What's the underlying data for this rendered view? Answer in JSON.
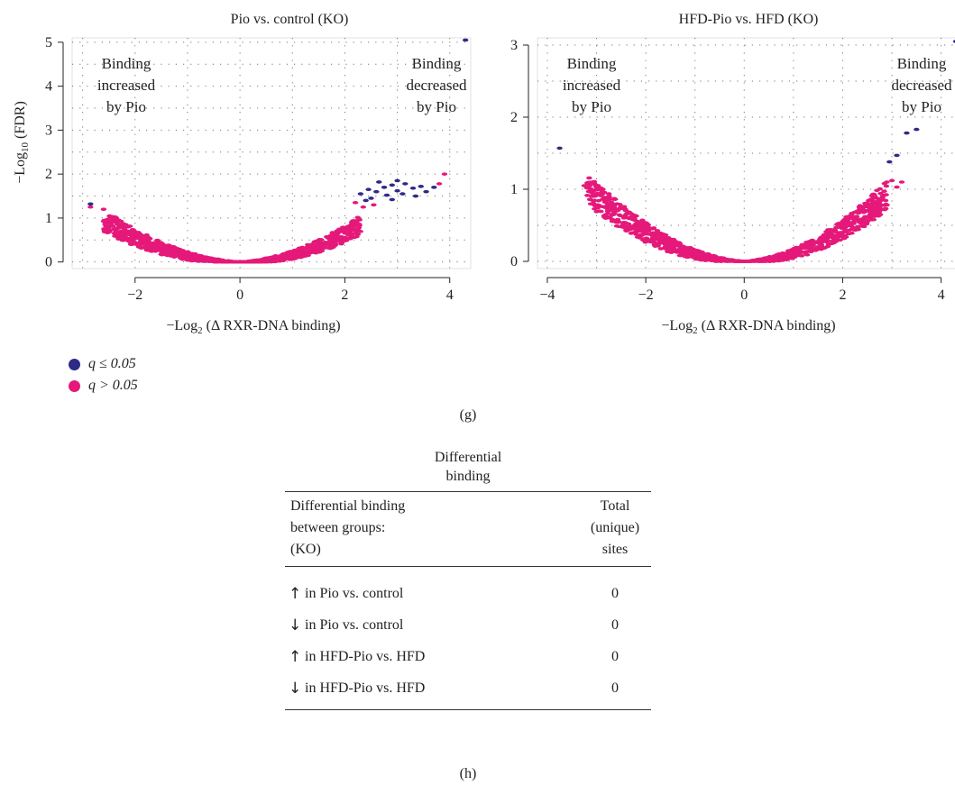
{
  "colors": {
    "significant": "#2e2a86",
    "nonsignificant": "#e5197a"
  },
  "chart_data": [
    {
      "type": "scatter",
      "title": "Pio vs. control (KO)",
      "xlabel_prefix": "−Log",
      "xlabel_sub": "2",
      "xlabel_suffix": " (Δ RXR-DNA binding)",
      "ylabel_prefix": "−Log",
      "ylabel_sub": "10",
      "ylabel_suffix": " (FDR)",
      "xlim": [
        -3.2,
        4.4
      ],
      "ylim": [
        -0.15,
        5.1
      ],
      "xticks": [
        -2,
        0,
        2,
        4
      ],
      "yticks": [
        0,
        1,
        2,
        3,
        4,
        5
      ],
      "xtick_labels": [
        "−2",
        "0",
        "2",
        "4"
      ],
      "ytick_labels": [
        "0",
        "1",
        "2",
        "3",
        "4",
        "5"
      ],
      "grid": true,
      "annotation_left": [
        "Binding",
        "increased",
        "by Pio"
      ],
      "annotation_right": [
        "Binding",
        "decreased",
        "by Pio"
      ],
      "curve": {
        "left_min": -2.6,
        "right_max": 2.3,
        "a_left": 0.14,
        "a_right": 0.16,
        "spread": 0.07
      },
      "tail_significant": [
        {
          "x": 2.3,
          "y": 1.55
        },
        {
          "x": 2.45,
          "y": 1.65
        },
        {
          "x": 2.6,
          "y": 1.6
        },
        {
          "x": 2.75,
          "y": 1.7
        },
        {
          "x": 2.9,
          "y": 1.75
        },
        {
          "x": 3.0,
          "y": 1.62
        },
        {
          "x": 3.15,
          "y": 1.78
        },
        {
          "x": 3.3,
          "y": 1.68
        },
        {
          "x": 3.45,
          "y": 1.72
        },
        {
          "x": 3.55,
          "y": 1.6
        },
        {
          "x": 2.5,
          "y": 1.45
        },
        {
          "x": 2.8,
          "y": 1.52
        },
        {
          "x": 3.1,
          "y": 1.55
        },
        {
          "x": 3.35,
          "y": 1.5
        },
        {
          "x": 2.65,
          "y": 1.82
        },
        {
          "x": 3.0,
          "y": 1.85
        },
        {
          "x": 3.7,
          "y": 1.7
        },
        {
          "x": 2.4,
          "y": 1.4
        },
        {
          "x": 2.9,
          "y": 1.42
        },
        {
          "x": 4.3,
          "y": 5.05
        },
        {
          "x": -2.85,
          "y": 1.32
        }
      ],
      "tail_nonsignificant": [
        {
          "x": 3.8,
          "y": 1.78
        },
        {
          "x": 3.9,
          "y": 2.0
        },
        {
          "x": -2.85,
          "y": 1.25
        },
        {
          "x": -2.6,
          "y": 1.2
        },
        {
          "x": 2.2,
          "y": 1.35
        },
        {
          "x": 2.35,
          "y": 1.25
        },
        {
          "x": 2.55,
          "y": 1.3
        }
      ]
    },
    {
      "type": "scatter",
      "title": "HFD-Pio vs. HFD (KO)",
      "xlabel_prefix": "−Log",
      "xlabel_sub": "2",
      "xlabel_suffix": " (Δ RXR-DNA binding)",
      "xlim": [
        -4.2,
        4.3
      ],
      "ylim": [
        -0.1,
        3.1
      ],
      "xticks": [
        -4,
        -2,
        0,
        2,
        4
      ],
      "yticks": [
        0,
        1,
        2,
        3
      ],
      "xtick_labels": [
        "−4",
        "−2",
        "0",
        "2",
        "4"
      ],
      "ytick_labels": [
        "0",
        "1",
        "2",
        "3"
      ],
      "grid": true,
      "annotation_left": [
        "Binding",
        "increased",
        "by Pio"
      ],
      "annotation_right": [
        "Binding",
        "decreased",
        "by Pio"
      ],
      "curve": {
        "left_min": -3.2,
        "right_max": 2.9,
        "a_left": 0.1,
        "a_right": 0.11,
        "spread": 0.05
      },
      "tail_significant": [
        {
          "x": -3.75,
          "y": 1.57
        },
        {
          "x": 4.3,
          "y": 3.05
        },
        {
          "x": 3.3,
          "y": 1.78
        },
        {
          "x": 3.5,
          "y": 1.83
        },
        {
          "x": 3.1,
          "y": 1.47
        },
        {
          "x": 2.95,
          "y": 1.38
        }
      ],
      "tail_nonsignificant": [
        {
          "x": -3.25,
          "y": 1.05
        },
        {
          "x": -3.0,
          "y": 1.0
        },
        {
          "x": -2.9,
          "y": 0.95
        },
        {
          "x": 3.0,
          "y": 1.12
        },
        {
          "x": 3.2,
          "y": 1.1
        },
        {
          "x": 3.1,
          "y": 1.03
        },
        {
          "x": 2.85,
          "y": 1.08
        }
      ]
    },
    {
      "type": "table",
      "caption": [
        "Differential",
        "binding"
      ],
      "header_left": [
        "Differential binding",
        "between groups:",
        "(KO)"
      ],
      "header_right": [
        "Total",
        "(unique)",
        "sites"
      ],
      "rows": [
        {
          "arrow": "↑",
          "label": "in Pio vs. control",
          "value": "0"
        },
        {
          "arrow": "↓",
          "label": "in Pio vs. control",
          "value": "0"
        },
        {
          "arrow": "↑",
          "label": "in HFD-Pio vs. HFD",
          "value": "0"
        },
        {
          "arrow": "↓",
          "label": "in HFD-Pio vs. HFD",
          "value": "0"
        }
      ]
    }
  ],
  "legend": [
    {
      "label": "q ≤ 0.05",
      "color_key": "significant"
    },
    {
      "label": "q > 0.05",
      "color_key": "nonsignificant"
    }
  ],
  "panel_labels": {
    "g": "(g)",
    "h": "(h)"
  }
}
